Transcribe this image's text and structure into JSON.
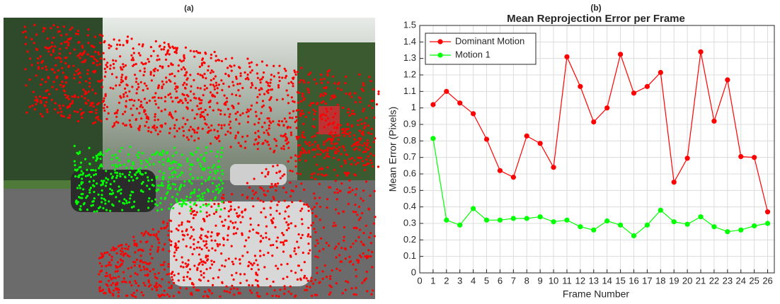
{
  "panels": {
    "a": "(a)",
    "b": "(b)"
  },
  "chart_data": {
    "type": "line",
    "title": "Mean Reprojection Error per Frame",
    "xlabel": "Frame Number",
    "ylabel": "Mean Error (Pixels)",
    "x": [
      1,
      2,
      3,
      4,
      5,
      6,
      7,
      8,
      9,
      10,
      11,
      12,
      13,
      14,
      15,
      16,
      17,
      18,
      19,
      20,
      21,
      22,
      23,
      24,
      25,
      26
    ],
    "series": [
      {
        "name": "Dominant Motion",
        "color": "#ff0000",
        "values": [
          1.02,
          1.1,
          1.03,
          0.965,
          0.81,
          0.62,
          0.58,
          0.83,
          0.785,
          0.64,
          1.31,
          1.13,
          0.915,
          1.0,
          1.325,
          1.09,
          1.13,
          1.215,
          0.55,
          0.695,
          1.34,
          0.92,
          1.17,
          0.705,
          0.7,
          0.37
        ]
      },
      {
        "name": "Motion 1",
        "color": "#00ff00",
        "values": [
          0.815,
          0.32,
          0.29,
          0.39,
          0.32,
          0.32,
          0.33,
          0.33,
          0.34,
          0.31,
          0.32,
          0.28,
          0.26,
          0.315,
          0.29,
          0.225,
          0.29,
          0.38,
          0.31,
          0.295,
          0.34,
          0.28,
          0.25,
          0.26,
          0.285,
          0.3
        ]
      }
    ],
    "xlim": [
      0,
      26.5
    ],
    "xticks": [
      0,
      1,
      2,
      3,
      4,
      5,
      6,
      7,
      8,
      9,
      10,
      11,
      12,
      13,
      14,
      15,
      16,
      17,
      18,
      19,
      20,
      21,
      22,
      23,
      24,
      25,
      26
    ],
    "ylim": [
      0,
      1.5
    ],
    "yticks": [
      0,
      0.1,
      0.2,
      0.3,
      0.4,
      0.5,
      0.6,
      0.7,
      0.8,
      0.9,
      1,
      1.1,
      1.2,
      1.3,
      1.4,
      1.5
    ],
    "grid": true,
    "legend": "upper left"
  }
}
